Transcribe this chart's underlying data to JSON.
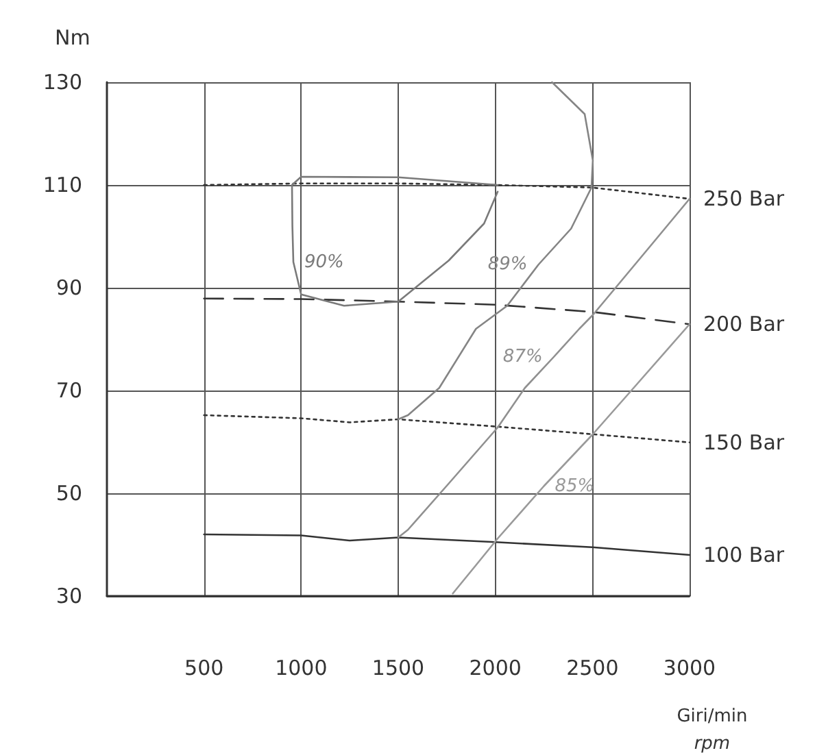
{
  "chart_data": {
    "type": "line",
    "xlabel": "Giri/min\nrpm",
    "ylabel": "Nm",
    "xlim": [
      0,
      3000
    ],
    "xticks": [
      500,
      1000,
      1500,
      2000,
      2500,
      3000
    ],
    "ylim": [
      30,
      130
    ],
    "yticks": [
      30,
      50,
      70,
      90,
      110,
      130
    ],
    "grid": true,
    "legend": false,
    "marker": "none",
    "series": [
      {
        "name": "250 Bar",
        "color": "#333333",
        "line_style": "dotted",
        "x": [
          500,
          1000,
          1500,
          2000,
          2500,
          3000
        ],
        "values": [
          110,
          110.3,
          110.3,
          110,
          109.5,
          107.3
        ]
      },
      {
        "name": "200 Bar",
        "color": "#333333",
        "line_style": "dashed",
        "x": [
          500,
          1000,
          1500,
          2000,
          2500,
          3000
        ],
        "values": [
          87.9,
          87.8,
          87.3,
          86.7,
          85.3,
          82.9
        ]
      },
      {
        "name": "150 Bar",
        "color": "#333333",
        "line_style": "dotted",
        "x": [
          500,
          1000,
          1250,
          1500,
          2000,
          2500,
          3000
        ],
        "values": [
          65.2,
          64.6,
          63.8,
          64.4,
          63,
          61.5,
          59.9
        ]
      },
      {
        "name": "100 Bar",
        "color": "#333333",
        "line_style": "solid",
        "x": [
          500,
          1000,
          1250,
          1500,
          2000,
          2500,
          3000
        ],
        "values": [
          42,
          41.8,
          40.8,
          41.4,
          40.5,
          39.5,
          38
        ]
      },
      {
        "name": "90%",
        "color": "#7a7a7a",
        "line_style": "solid",
        "x": [
          2012,
          1942,
          1760,
          1500,
          1221,
          1000,
          960,
          955,
          953,
          1000,
          1500,
          2012
        ],
        "values": [
          108.7,
          102.5,
          95.3,
          87.3,
          86.5,
          88.7,
          95,
          102,
          110,
          111.6,
          111.5,
          110
        ]
      },
      {
        "name": "89%",
        "color": "#858585",
        "line_style": "solid",
        "x": [
          2292,
          2460,
          2502,
          2495,
          2390,
          2222,
          2061,
          1900,
          1711,
          1550,
          1500
        ],
        "values": [
          130,
          123.8,
          114.8,
          109.5,
          101.5,
          94.5,
          86.5,
          82,
          70.5,
          65.2,
          64.4
        ]
      },
      {
        "name": "87%",
        "color": "#909090",
        "line_style": "solid",
        "x": [
          3000,
          2800,
          2650,
          2502,
          2432,
          2300,
          2152,
          2012,
          1760,
          1550,
          1500
        ],
        "values": [
          107.3,
          98.2,
          91.4,
          84.7,
          82,
          76.5,
          70.5,
          62.8,
          51.9,
          42.9,
          41.4
        ]
      },
      {
        "name": "85%",
        "color": "#9a9a9a",
        "line_style": "solid",
        "x": [
          3000,
          2712,
          2502,
          2250,
          2012,
          1900,
          1781
        ],
        "values": [
          82.9,
          70.5,
          61.5,
          51.4,
          41.2,
          36,
          30.5
        ]
      }
    ]
  }
}
